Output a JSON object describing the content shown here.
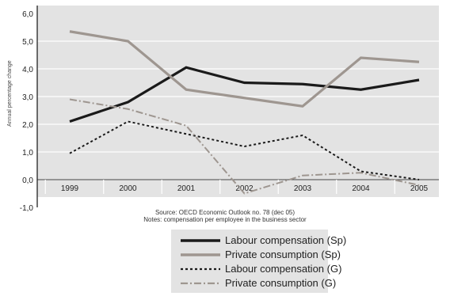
{
  "chart_data": {
    "type": "line",
    "title": "",
    "xlabel": "",
    "ylabel": "Annual percentage change",
    "categories": [
      "1999",
      "2000",
      "2001",
      "2002",
      "2003",
      "2004",
      "2005"
    ],
    "yticks": [
      "-1,0",
      "0,0",
      "1,0",
      "2,0",
      "3,0",
      "4,0",
      "5,0",
      "6,0"
    ],
    "ylim": [
      -1,
      6
    ],
    "grid": "horizontal",
    "legend_position": "bottom-center",
    "series": [
      {
        "name": "Labour compensation (Sp)",
        "style": "solid",
        "color": "#1a1a1a",
        "values": [
          2.1,
          2.8,
          4.05,
          3.5,
          3.45,
          3.25,
          3.6
        ]
      },
      {
        "name": "Private consumption (Sp)",
        "style": "solid",
        "color": "#9e9690",
        "values": [
          5.35,
          5.0,
          3.25,
          2.95,
          2.65,
          4.4,
          4.25
        ]
      },
      {
        "name": "Labour compensation (G)",
        "style": "dotted",
        "color": "#1a1a1a",
        "values": [
          0.95,
          2.1,
          1.65,
          1.2,
          1.6,
          0.3,
          0.0
        ]
      },
      {
        "name": "Private consumption (G)",
        "style": "dashdot",
        "color": "#9e9690",
        "values": [
          2.9,
          2.55,
          1.95,
          -0.5,
          0.15,
          0.25,
          -0.2
        ]
      }
    ],
    "source_line1": "Source: OECD Economic Outlook no. 78 (dec 05)",
    "source_line2": "Notes: compensation per employee in the business sector"
  }
}
